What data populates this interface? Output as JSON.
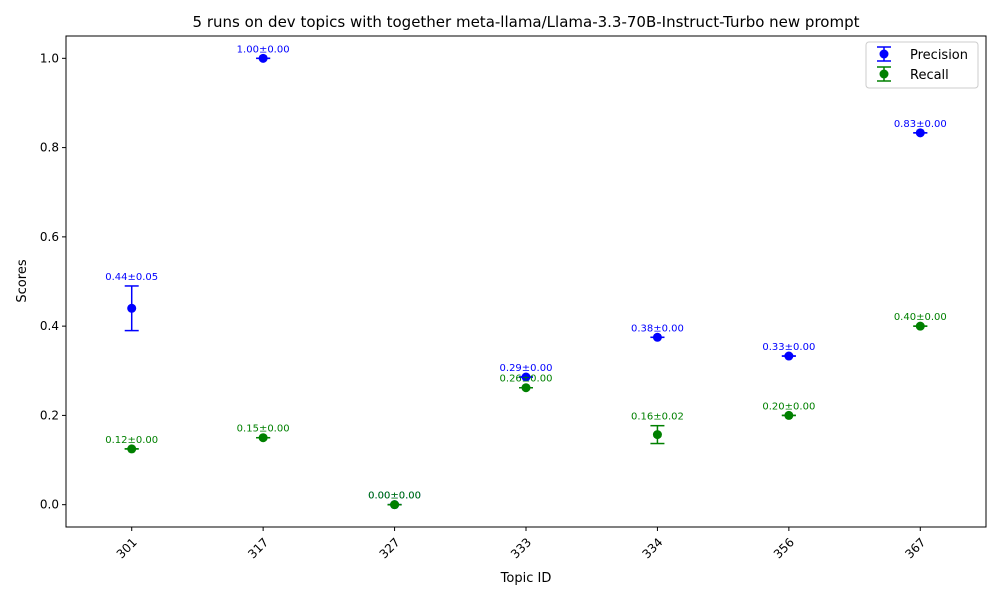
{
  "chart_data": {
    "type": "scatter",
    "title": "5 runs on dev topics with together meta-llama/Llama-3.3-70B-Instruct-Turbo new prompt",
    "xlabel": "Topic ID",
    "ylabel": "Scores",
    "categories": [
      "301",
      "317",
      "327",
      "333",
      "334",
      "356",
      "367"
    ],
    "ylim": [
      -0.05,
      1.05
    ],
    "yticks": [
      "0.0",
      "0.2",
      "0.4",
      "0.6",
      "0.8",
      "1.0"
    ],
    "grid": false,
    "legend_position": "top-right",
    "series": [
      {
        "name": "Precision",
        "color": "#0000ff",
        "values": [
          0.44,
          1.0,
          0.0,
          0.286,
          0.375,
          0.333,
          0.833
        ],
        "errors": [
          0.05,
          0.0,
          0.0,
          0.0,
          0.0,
          0.0,
          0.0
        ],
        "labels": [
          "0.44±0.05",
          "1.00±0.00",
          "0.00±0.00",
          "0.29±0.00",
          "0.38±0.00",
          "0.33±0.00",
          "0.83±0.00"
        ]
      },
      {
        "name": "Recall",
        "color": "#008000",
        "values": [
          0.125,
          0.15,
          0.0,
          0.262,
          0.157,
          0.2,
          0.4
        ],
        "errors": [
          0.0,
          0.0,
          0.0,
          0.0,
          0.02,
          0.0,
          0.0
        ],
        "labels": [
          "0.12±0.00",
          "0.15±0.00",
          "0.00±0.00",
          "0.26±0.00",
          "0.16±0.02",
          "0.20±0.00",
          "0.40±0.00"
        ]
      }
    ]
  }
}
